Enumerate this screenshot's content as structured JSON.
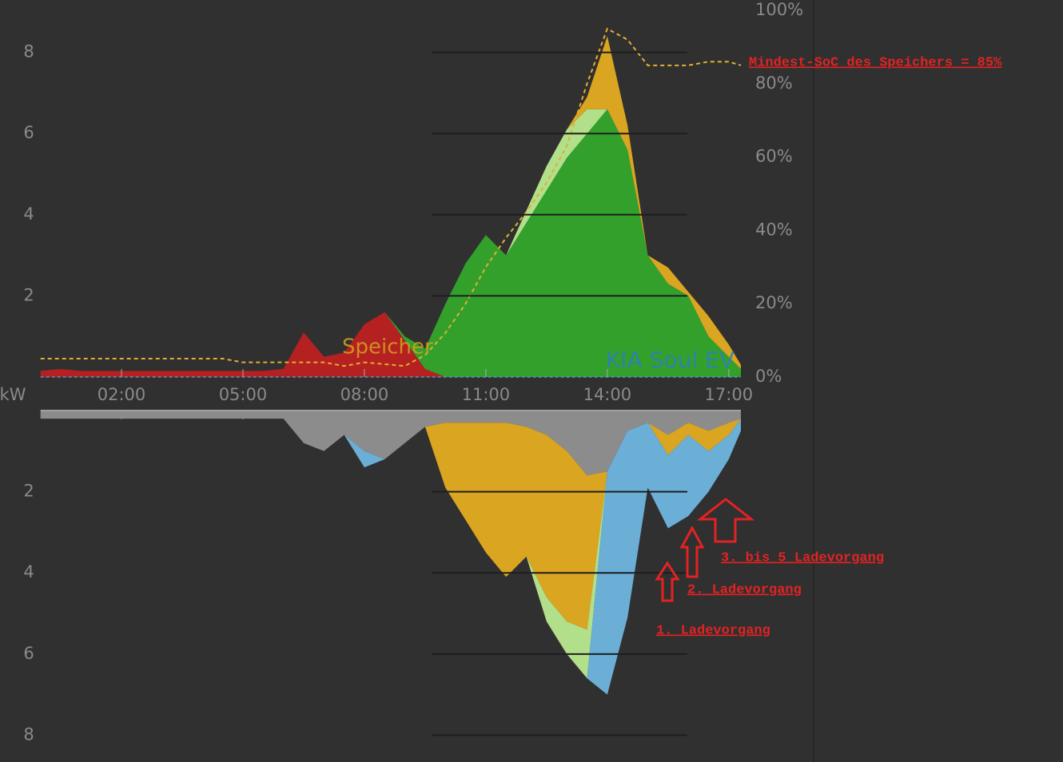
{
  "chart_data": [
    {
      "type": "area",
      "ylabel": "kW",
      "x": [
        0,
        0.5,
        1,
        1.5,
        2,
        2.5,
        3,
        3.5,
        4,
        4.5,
        5,
        5.5,
        6,
        6.5,
        7,
        7.5,
        8,
        8.5,
        9,
        9.5,
        10,
        10.5,
        11,
        11.5,
        12,
        12.5,
        13,
        13.5,
        14,
        14.5,
        15,
        15.5,
        16,
        16.5,
        17,
        17.3
      ],
      "xlim": [
        0,
        17.3
      ],
      "xticks": [
        {
          "value": 2,
          "label": "02:00"
        },
        {
          "value": 5,
          "label": "05:00"
        },
        {
          "value": 8,
          "label": "08:00"
        },
        {
          "value": 11,
          "label": "11:00"
        },
        {
          "value": 14,
          "label": "14:00"
        },
        {
          "value": 17,
          "label": "17:00"
        }
      ],
      "ylim": [
        0,
        9
      ],
      "yticks": [
        2,
        4,
        6,
        8
      ],
      "y2lim": [
        0,
        100
      ],
      "y2ticks": [
        {
          "value": 0,
          "label": "0%"
        },
        {
          "value": 20,
          "label": "20%"
        },
        {
          "value": 40,
          "label": "40%"
        },
        {
          "value": 60,
          "label": "60%"
        },
        {
          "value": 80,
          "label": "80%"
        },
        {
          "value": 100,
          "label": "100%"
        }
      ],
      "series": [
        {
          "color": "#b52020",
          "values": [
            0.15,
            0.2,
            0.15,
            0.15,
            0.15,
            0.15,
            0.15,
            0.15,
            0.15,
            0.15,
            0.15,
            0.15,
            0.2,
            1.1,
            0.5,
            0.6,
            1.3,
            1.6,
            0.9,
            0.2,
            0,
            0,
            0,
            0,
            0,
            0,
            0,
            0,
            0,
            0,
            0,
            0,
            0,
            0,
            0,
            0
          ]
        },
        {
          "color": "#33a02c",
          "values": [
            0,
            0,
            0,
            0,
            0,
            0,
            0,
            0,
            0,
            0,
            0,
            0,
            0,
            0,
            0,
            0,
            0,
            0,
            0.1,
            0.5,
            1.8,
            2.8,
            3.5,
            3.0,
            3.8,
            4.6,
            5.4,
            6.0,
            6.6,
            5.6,
            3.0,
            2.3,
            2.0,
            1.0,
            0.5,
            0.2
          ]
        },
        {
          "color": "#b2df8a",
          "values": [
            0,
            0,
            0,
            0,
            0,
            0,
            0,
            0,
            0,
            0,
            0,
            0,
            0,
            0,
            0,
            0,
            0,
            0,
            0,
            0,
            0,
            0,
            0,
            0,
            0.3,
            0.6,
            0.7,
            0.6,
            0,
            0,
            0,
            0,
            0,
            0,
            0,
            0
          ]
        },
        {
          "color": "#daa520",
          "values": [
            0,
            0,
            0,
            0,
            0,
            0,
            0,
            0,
            0,
            0,
            0,
            0,
            0,
            0,
            0,
            0,
            0,
            0,
            0,
            0,
            0,
            0,
            0,
            0,
            0,
            0,
            0,
            0.3,
            1.8,
            0.6,
            0,
            0.4,
            0.1,
            0.5,
            0.3,
            0.1
          ]
        },
        {
          "color": "#e0b030",
          "axis": "y2",
          "style": "dashed",
          "values": [
            5,
            5,
            5,
            5,
            5,
            5,
            5,
            5,
            5,
            5,
            4,
            4,
            4,
            4,
            4,
            3,
            4,
            3.5,
            3,
            6,
            12,
            20,
            30,
            38,
            45,
            53,
            63,
            80,
            95,
            92,
            85,
            85,
            85,
            86,
            86,
            85
          ]
        }
      ],
      "annotations": [
        {
          "text": "Speicher",
          "color": "#d4a020"
        },
        {
          "text": "KIA Soul EV",
          "color": "#2f7fbf"
        },
        {
          "text": "Mindest-SoC des Speichers = 85%",
          "color": "#e32222"
        }
      ]
    },
    {
      "type": "area",
      "inverted": true,
      "x": [
        0,
        0.5,
        1,
        1.5,
        2,
        2.5,
        3,
        3.5,
        4,
        4.5,
        5,
        5.5,
        6,
        6.5,
        7,
        7.5,
        8,
        8.5,
        9,
        9.5,
        10,
        10.5,
        11,
        11.5,
        12,
        12.5,
        13,
        13.5,
        14,
        14.5,
        15,
        15.5,
        16,
        16.5,
        17,
        17.3
      ],
      "xlim": [
        0,
        17.3
      ],
      "ylim": [
        0,
        8.6
      ],
      "yticks": [
        2,
        4,
        6,
        8
      ],
      "series": [
        {
          "color": "#8c8c8c",
          "values": [
            0.2,
            0.2,
            0.2,
            0.2,
            0.2,
            0.2,
            0.2,
            0.2,
            0.2,
            0.2,
            0.2,
            0.2,
            0.2,
            0.8,
            1.0,
            0.6,
            1.0,
            1.2,
            0.8,
            0.4,
            0.3,
            0.3,
            0.3,
            0.3,
            0.4,
            0.6,
            1.0,
            1.6,
            1.5,
            0.5,
            0.3,
            0.6,
            0.3,
            0.5,
            0.3,
            0.2
          ]
        },
        {
          "color": "#daa520",
          "values": [
            0,
            0,
            0,
            0,
            0,
            0,
            0,
            0,
            0,
            0,
            0,
            0,
            0,
            0,
            0,
            0,
            0,
            0,
            0,
            0,
            1.6,
            2.4,
            3.2,
            3.8,
            3.2,
            4.0,
            4.2,
            3.8,
            0,
            0,
            0,
            0.5,
            0.3,
            0.5,
            0.3,
            0
          ]
        },
        {
          "color": "#b2df8a",
          "values": [
            0,
            0,
            0,
            0,
            0,
            0,
            0,
            0,
            0,
            0,
            0,
            0,
            0,
            0,
            0,
            0,
            0,
            0,
            0,
            0,
            0,
            0,
            0,
            0,
            0,
            0.6,
            0.8,
            1.2,
            0,
            0,
            0,
            0,
            0,
            0,
            0,
            0
          ]
        },
        {
          "color": "#6baed6",
          "values": [
            0,
            0,
            0,
            0,
            0,
            0,
            0,
            0,
            0,
            0,
            0,
            0,
            0,
            0,
            0,
            0,
            0.4,
            0,
            0,
            0,
            0,
            0,
            0,
            0,
            0,
            0,
            0,
            0,
            5.5,
            4.6,
            1.6,
            1.8,
            2.0,
            1.0,
            0.6,
            0.3
          ]
        }
      ],
      "annotations": [
        {
          "text": "3. bis 5 Ladevorgang",
          "color": "#e32222"
        },
        {
          "text": "2. Ladevorgang",
          "color": "#e32222"
        },
        {
          "text": "1. Ladevorgang",
          "color": "#e32222"
        }
      ]
    }
  ]
}
